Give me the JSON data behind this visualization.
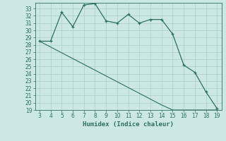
{
  "xlabel": "Humidex (Indice chaleur)",
  "x_humidex": [
    3,
    4,
    5,
    6,
    7,
    8,
    9,
    10,
    11,
    12,
    13,
    14,
    15,
    16,
    17,
    18,
    19
  ],
  "y_curve": [
    28.5,
    28.5,
    32.5,
    30.5,
    33.5,
    33.7,
    31.3,
    31.0,
    32.2,
    31.0,
    31.5,
    31.5,
    29.5,
    25.2,
    24.2,
    21.5,
    19.2
  ],
  "y_line": [
    28.5,
    27.7,
    26.9,
    26.1,
    25.3,
    24.5,
    23.7,
    22.9,
    22.1,
    21.3,
    20.5,
    19.7,
    19.0,
    19.0,
    19.0,
    19.0,
    19.0
  ],
  "line_color": "#2e6e63",
  "bg_color": "#cce8e4",
  "grid_color": "#aacfcb",
  "ylim": [
    19,
    33.8
  ],
  "xlim": [
    2.6,
    19.4
  ],
  "yticks": [
    19,
    20,
    21,
    22,
    23,
    24,
    25,
    26,
    27,
    28,
    29,
    30,
    31,
    32,
    33
  ],
  "xticks": [
    3,
    4,
    5,
    6,
    7,
    8,
    9,
    10,
    11,
    12,
    13,
    14,
    15,
    16,
    17,
    18,
    19
  ],
  "tick_fontsize": 5.5,
  "xlabel_fontsize": 6.5
}
